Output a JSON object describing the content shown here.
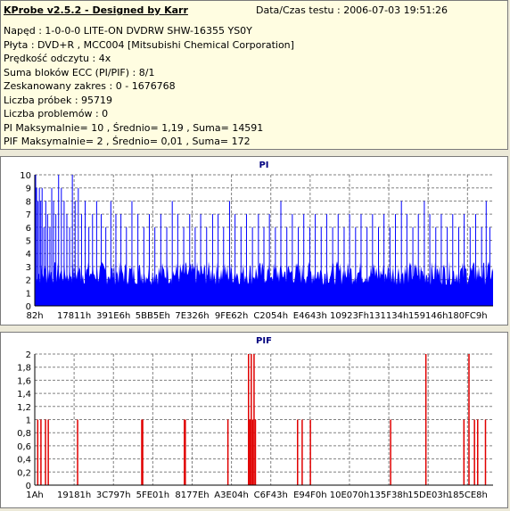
{
  "info": {
    "header": "KProbe v2.5.2 - Designed by Karr",
    "date": "Data/Czas testu : 2006-07-03 19:51:26",
    "lines": [
      "Napęd : 1-0-0-0 LITE-ON DVDRW SHW-16355  YS0Y",
      "Płyta : DVD+R , MCC004 [Mitsubishi Chemical Corporation]",
      "Prędkość odczytu : 4x",
      "Suma bloków ECC (PI/PIF) : 8/1",
      "Zeskanowany zakres : 0 - 1676768",
      "Liczba próbek : 95719",
      "Liczba problemów : 0",
      "PI Maksymalnie= 10 , Średnio= 1,19 , Suma= 14591",
      "PIF Maksymalnie= 2 , Średnio= 0,01 , Suma= 172"
    ]
  },
  "colors": {
    "pi": "#0000ff",
    "pif": "#e00000",
    "title": "#000080"
  },
  "chart_data": [
    {
      "type": "bar",
      "title": "PI",
      "ylim": [
        0,
        10
      ],
      "yticks": [
        "0",
        "1",
        "2",
        "3",
        "4",
        "5",
        "6",
        "7",
        "8",
        "9",
        "10"
      ],
      "xticks": [
        "82h",
        "17811h",
        "391E6h",
        "5BB5Eh",
        "7E326h",
        "9FE62h",
        "C2054h",
        "E4643h",
        "10923Fh",
        "131134h",
        "159146h",
        "180FC9h"
      ],
      "grid": true,
      "baseline": 3,
      "spikes": [
        {
          "x": 0.002,
          "y": 10
        },
        {
          "x": 0.004,
          "y": 9
        },
        {
          "x": 0.007,
          "y": 8
        },
        {
          "x": 0.01,
          "y": 9
        },
        {
          "x": 0.013,
          "y": 8
        },
        {
          "x": 0.016,
          "y": 9
        },
        {
          "x": 0.02,
          "y": 6
        },
        {
          "x": 0.024,
          "y": 8
        },
        {
          "x": 0.028,
          "y": 7
        },
        {
          "x": 0.033,
          "y": 6
        },
        {
          "x": 0.037,
          "y": 9
        },
        {
          "x": 0.041,
          "y": 8
        },
        {
          "x": 0.046,
          "y": 7
        },
        {
          "x": 0.052,
          "y": 10
        },
        {
          "x": 0.058,
          "y": 9
        },
        {
          "x": 0.064,
          "y": 8
        },
        {
          "x": 0.07,
          "y": 7
        },
        {
          "x": 0.076,
          "y": 6
        },
        {
          "x": 0.082,
          "y": 10
        },
        {
          "x": 0.088,
          "y": 8
        },
        {
          "x": 0.095,
          "y": 9
        },
        {
          "x": 0.102,
          "y": 7
        },
        {
          "x": 0.11,
          "y": 8
        },
        {
          "x": 0.118,
          "y": 6
        },
        {
          "x": 0.126,
          "y": 7
        },
        {
          "x": 0.135,
          "y": 8
        },
        {
          "x": 0.145,
          "y": 7
        },
        {
          "x": 0.155,
          "y": 6
        },
        {
          "x": 0.166,
          "y": 8
        },
        {
          "x": 0.177,
          "y": 7
        },
        {
          "x": 0.188,
          "y": 7
        },
        {
          "x": 0.2,
          "y": 6
        },
        {
          "x": 0.212,
          "y": 8
        },
        {
          "x": 0.225,
          "y": 7
        },
        {
          "x": 0.238,
          "y": 6
        },
        {
          "x": 0.25,
          "y": 7
        },
        {
          "x": 0.262,
          "y": 6
        },
        {
          "x": 0.275,
          "y": 7
        },
        {
          "x": 0.288,
          "y": 6
        },
        {
          "x": 0.3,
          "y": 8
        },
        {
          "x": 0.312,
          "y": 7
        },
        {
          "x": 0.325,
          "y": 6
        },
        {
          "x": 0.338,
          "y": 7
        },
        {
          "x": 0.35,
          "y": 6
        },
        {
          "x": 0.362,
          "y": 7
        },
        {
          "x": 0.375,
          "y": 6
        },
        {
          "x": 0.388,
          "y": 7
        },
        {
          "x": 0.4,
          "y": 7
        },
        {
          "x": 0.412,
          "y": 6
        },
        {
          "x": 0.425,
          "y": 8
        },
        {
          "x": 0.437,
          "y": 7
        },
        {
          "x": 0.45,
          "y": 6
        },
        {
          "x": 0.462,
          "y": 7
        },
        {
          "x": 0.475,
          "y": 6
        },
        {
          "x": 0.488,
          "y": 7
        },
        {
          "x": 0.5,
          "y": 6
        },
        {
          "x": 0.512,
          "y": 7
        },
        {
          "x": 0.525,
          "y": 6
        },
        {
          "x": 0.537,
          "y": 8
        },
        {
          "x": 0.55,
          "y": 6
        },
        {
          "x": 0.562,
          "y": 7
        },
        {
          "x": 0.575,
          "y": 6
        },
        {
          "x": 0.587,
          "y": 7
        },
        {
          "x": 0.6,
          "y": 6
        },
        {
          "x": 0.612,
          "y": 7
        },
        {
          "x": 0.625,
          "y": 6
        },
        {
          "x": 0.637,
          "y": 7
        },
        {
          "x": 0.65,
          "y": 6
        },
        {
          "x": 0.662,
          "y": 7
        },
        {
          "x": 0.675,
          "y": 6
        },
        {
          "x": 0.687,
          "y": 7
        },
        {
          "x": 0.7,
          "y": 6
        },
        {
          "x": 0.712,
          "y": 7
        },
        {
          "x": 0.725,
          "y": 6
        },
        {
          "x": 0.737,
          "y": 7
        },
        {
          "x": 0.75,
          "y": 6
        },
        {
          "x": 0.762,
          "y": 7
        },
        {
          "x": 0.775,
          "y": 6
        },
        {
          "x": 0.787,
          "y": 7
        },
        {
          "x": 0.8,
          "y": 8
        },
        {
          "x": 0.812,
          "y": 7
        },
        {
          "x": 0.825,
          "y": 6
        },
        {
          "x": 0.837,
          "y": 7
        },
        {
          "x": 0.85,
          "y": 8
        },
        {
          "x": 0.862,
          "y": 7
        },
        {
          "x": 0.875,
          "y": 6
        },
        {
          "x": 0.887,
          "y": 7
        },
        {
          "x": 0.9,
          "y": 6
        },
        {
          "x": 0.912,
          "y": 7
        },
        {
          "x": 0.925,
          "y": 6
        },
        {
          "x": 0.937,
          "y": 7
        },
        {
          "x": 0.95,
          "y": 6
        },
        {
          "x": 0.962,
          "y": 7
        },
        {
          "x": 0.975,
          "y": 6
        },
        {
          "x": 0.985,
          "y": 8
        },
        {
          "x": 0.993,
          "y": 6
        }
      ]
    },
    {
      "type": "bar",
      "title": "PIF",
      "ylim": [
        0,
        2
      ],
      "yticks": [
        "0",
        "0,2",
        "0,4",
        "0,6",
        "0,8",
        "1",
        "1,2",
        "1,4",
        "1,6",
        "1,8",
        "2"
      ],
      "xticks": [
        "1Ah",
        "19181h",
        "3C797h",
        "5FE01h",
        "8177Eh",
        "A3E04h",
        "C6F43h",
        "E94F0h",
        "10E070h",
        "135F38h",
        "15DE03h",
        "185CE8h"
      ],
      "grid": true,
      "bars": [
        {
          "x": 0.005,
          "y": 1
        },
        {
          "x": 0.012,
          "y": 1
        },
        {
          "x": 0.022,
          "y": 1
        },
        {
          "x": 0.028,
          "y": 1
        },
        {
          "x": 0.092,
          "y": 1
        },
        {
          "x": 0.232,
          "y": 1
        },
        {
          "x": 0.234,
          "y": 1
        },
        {
          "x": 0.325,
          "y": 1
        },
        {
          "x": 0.327,
          "y": 1
        },
        {
          "x": 0.42,
          "y": 1
        },
        {
          "x": 0.465,
          "y": 2
        },
        {
          "x": 0.468,
          "y": 1
        },
        {
          "x": 0.471,
          "y": 2
        },
        {
          "x": 0.474,
          "y": 1
        },
        {
          "x": 0.477,
          "y": 2
        },
        {
          "x": 0.48,
          "y": 1
        },
        {
          "x": 0.572,
          "y": 1
        },
        {
          "x": 0.582,
          "y": 1
        },
        {
          "x": 0.6,
          "y": 1
        },
        {
          "x": 0.775,
          "y": 1
        },
        {
          "x": 0.852,
          "y": 2
        },
        {
          "x": 0.935,
          "y": 1
        },
        {
          "x": 0.946,
          "y": 2
        },
        {
          "x": 0.958,
          "y": 1
        },
        {
          "x": 0.965,
          "y": 1
        },
        {
          "x": 0.982,
          "y": 1
        }
      ]
    }
  ]
}
